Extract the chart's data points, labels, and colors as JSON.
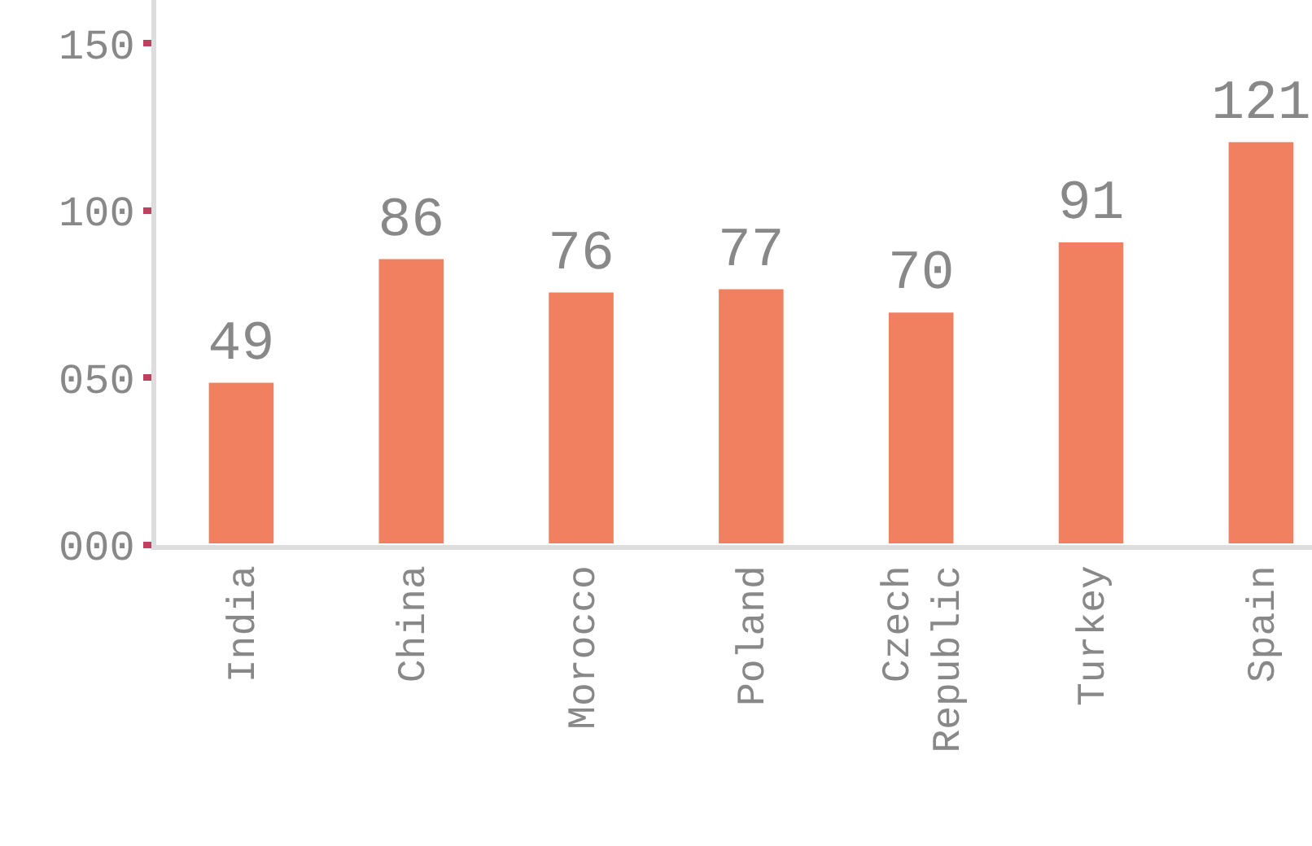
{
  "chart_data": {
    "type": "bar",
    "categories": [
      "India",
      "China",
      "Morocco",
      "Poland",
      "Czech Republic",
      "Turkey",
      "Spain"
    ],
    "values": [
      49,
      86,
      76,
      77,
      70,
      91,
      121
    ],
    "color": "#f08060",
    "data_labels": true,
    "ylim": [
      0,
      163
    ],
    "yticks": [
      {
        "value": 0,
        "label": "000"
      },
      {
        "value": 50,
        "label": "050"
      },
      {
        "value": 100,
        "label": "100"
      },
      {
        "value": 150,
        "label": "150"
      }
    ]
  }
}
